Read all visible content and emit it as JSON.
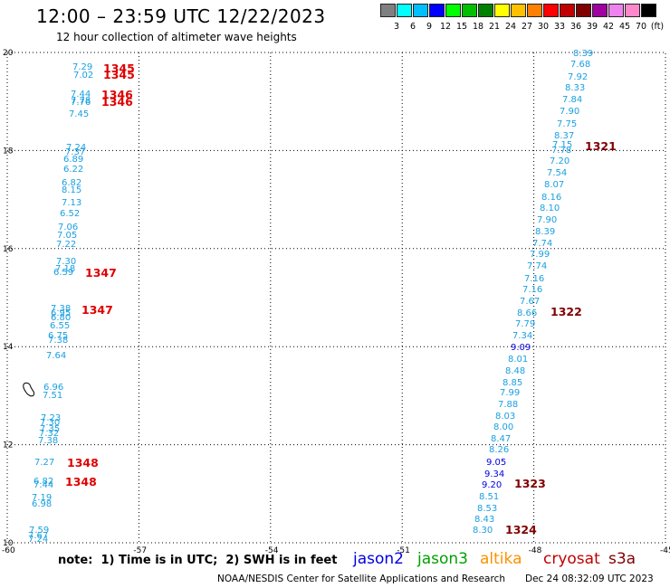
{
  "header": {
    "title": "12:00 – 23:59 UTC 12/22/2023",
    "subtitle": "12 hour collection of altimeter wave heights"
  },
  "color_scale": {
    "swatches": [
      "#808080",
      "#00ffff",
      "#00bfff",
      "#0000ff",
      "#00ff00",
      "#00c000",
      "#008000",
      "#ffff00",
      "#ffc000",
      "#ff8000",
      "#ff0000",
      "#c00000",
      "#800000",
      "#a000a0",
      "#ee82ee",
      "#ff88cc",
      "#000000"
    ],
    "labels": [
      "3",
      "6",
      "9",
      "12",
      "15",
      "18",
      "21",
      "24",
      "27",
      "30",
      "33",
      "36",
      "39",
      "42",
      "45",
      "70",
      "(ft)"
    ]
  },
  "axes": {
    "lon_ticks": [
      "-60",
      "-57",
      "-54",
      "-51",
      "-48",
      "-45"
    ],
    "lat_ticks": [
      "20",
      "18",
      "16",
      "14",
      "12",
      "10"
    ]
  },
  "track_labels": [
    {
      "text": "1345",
      "color": "#e00000"
    },
    {
      "text": "1345",
      "color": "#e00000"
    },
    {
      "text": "1346",
      "color": "#e00000"
    },
    {
      "text": "1346",
      "color": "#e00000"
    },
    {
      "text": "1347",
      "color": "#e00000"
    },
    {
      "text": "1347",
      "color": "#e00000"
    },
    {
      "text": "1348",
      "color": "#e00000"
    },
    {
      "text": "1348",
      "color": "#e00000"
    },
    {
      "text": "1321",
      "color": "#800000"
    },
    {
      "text": "1322",
      "color": "#800000"
    },
    {
      "text": "1323",
      "color": "#800000"
    },
    {
      "text": "1324",
      "color": "#800000"
    }
  ],
  "west_track_values": [
    "7.29",
    "7.02",
    "7.44",
    "7.78",
    "7.76",
    "7.45",
    "7.24",
    "7.37",
    "6.89",
    "6.22",
    "6.82",
    "8.15",
    "7.13",
    "6.52",
    "7.06",
    "7.05",
    "7.22",
    "7.30",
    "7.18",
    "6.59",
    "7.38",
    "6.95",
    "6.80",
    "6.55",
    "6.75",
    "7.38",
    "7.64",
    "6.96",
    "7.51",
    "7.23",
    "7.30",
    "7.35",
    "7.32",
    "7.38",
    "7.27",
    "6.82",
    "7.44",
    "7.19",
    "6.98",
    "7.59",
    "7.67",
    "7.24"
  ],
  "east_track_values": [
    "8.39",
    "7.68",
    "7.92",
    "8.33",
    "7.84",
    "7.90",
    "7.75",
    "8.37",
    "7.15",
    "7.78",
    "7.20",
    "7.54",
    "8.07",
    "8.16",
    "8.10",
    "7.90",
    "8.39",
    "7.74",
    "7.99",
    "7.74",
    "7.16",
    "7.16",
    "7.67",
    "8.66",
    "7.79",
    "7.34",
    "9.09",
    "8.01",
    "8.48",
    "8.85",
    "7.99",
    "7.88",
    "8.03",
    "8.00",
    "8.47",
    "8.26",
    "9.05",
    "9.34",
    "9.20",
    "8.51",
    "8.53",
    "8.43",
    "8.30"
  ],
  "east_track_colors": [
    "#1aa0e0",
    "#1aa0e0",
    "#1aa0e0",
    "#1aa0e0",
    "#1aa0e0",
    "#1aa0e0",
    "#1aa0e0",
    "#1aa0e0",
    "#1aa0e0",
    "#1aa0e0",
    "#1aa0e0",
    "#1aa0e0",
    "#1aa0e0",
    "#1aa0e0",
    "#1aa0e0",
    "#1aa0e0",
    "#1aa0e0",
    "#1aa0e0",
    "#1aa0e0",
    "#1aa0e0",
    "#1aa0e0",
    "#1aa0e0",
    "#1aa0e0",
    "#1aa0e0",
    "#1aa0e0",
    "#1aa0e0",
    "#0000e0",
    "#1aa0e0",
    "#1aa0e0",
    "#1aa0e0",
    "#1aa0e0",
    "#1aa0e0",
    "#1aa0e0",
    "#1aa0e0",
    "#1aa0e0",
    "#1aa0e0",
    "#0000e0",
    "#0000e0",
    "#0000e0",
    "#1aa0e0",
    "#1aa0e0",
    "#1aa0e0",
    "#1aa0e0"
  ],
  "footer": {
    "note": "note:  1) Time is in UTC;  2) SWH is in feet",
    "missions": [
      {
        "name": "jason2",
        "color": "#0000e0"
      },
      {
        "name": "jason3",
        "color": "#00a000"
      },
      {
        "name": "altika",
        "color": "#ff9000"
      },
      {
        "name": "cryosat",
        "color": "#c00000"
      },
      {
        "name": "s3a",
        "color": "#800000"
      }
    ],
    "credit": "NOAA/NESDIS Center for Satellite Applications and Research",
    "timestamp": "Dec 24 08:32:09 UTC 2023"
  }
}
